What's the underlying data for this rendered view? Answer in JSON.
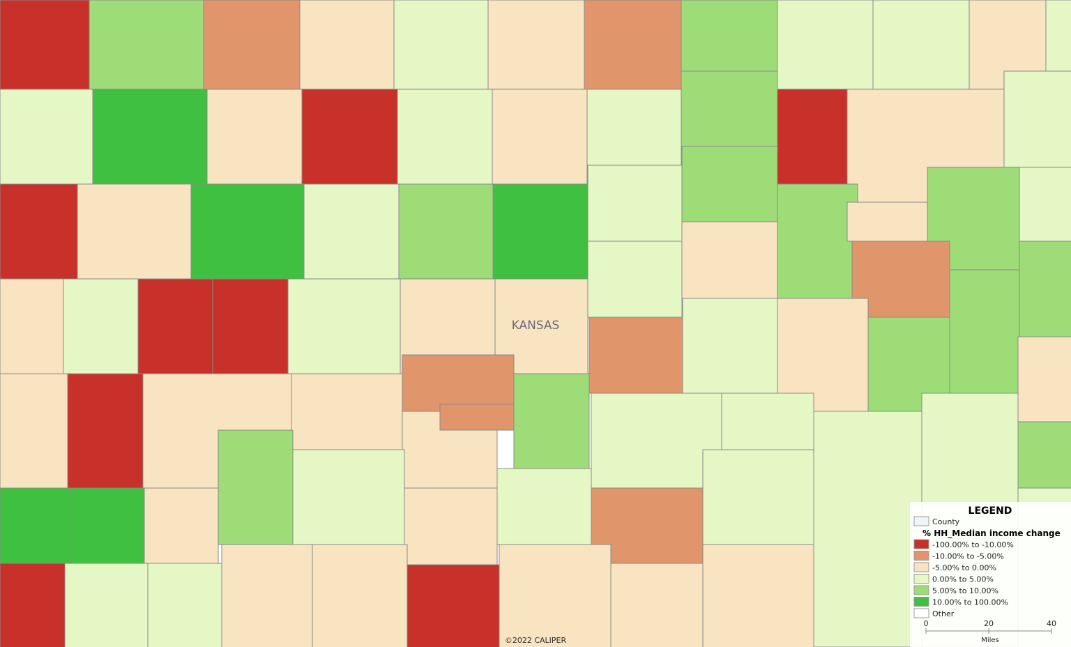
{
  "map": {
    "state_label": "KANSAS",
    "copyright": "©2022 CALIPER",
    "legend": {
      "title": "LEGEND",
      "layer": "County",
      "theme_title": "% HH_Median income change",
      "classes": [
        {
          "label": "-100.00% to -10.00%",
          "color": "#c8302a"
        },
        {
          "label": "-10.00% to -5.00%",
          "color": "#e0956b"
        },
        {
          "label": "-5.00% to 0.00%",
          "color": "#f8e4c0"
        },
        {
          "label": "0.00% to 5.00%",
          "color": "#e6f7c6"
        },
        {
          "label": "5.00% to 10.00%",
          "color": "#9edc78"
        },
        {
          "label": "10.00% to 100.00%",
          "color": "#40c040"
        },
        {
          "label": "Other",
          "color": "#ffffff"
        }
      ]
    },
    "scale_bar": {
      "ticks": [
        0,
        20,
        40
      ],
      "unit": "Miles"
    }
  }
}
